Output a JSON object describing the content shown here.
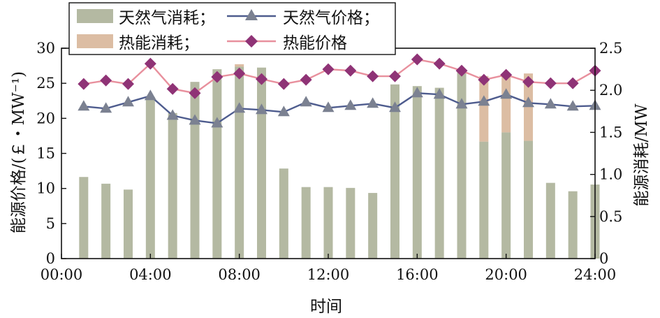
{
  "chart_data": {
    "type": "bar+line",
    "x_ticks": [
      "00:00",
      "04:00",
      "08:00",
      "12:00",
      "16:00",
      "20:00",
      "24:00"
    ],
    "x_range_hours": [
      0,
      24
    ],
    "xlabel": "时间",
    "ylabel_left": "能源价格/(￡・MW⁻¹)",
    "ylabel_right": "能源消耗/MW",
    "ylim_left": [
      0,
      30
    ],
    "ylim_right": [
      0,
      2.5
    ],
    "yticks_left": [
      0,
      5,
      10,
      15,
      20,
      25,
      30
    ],
    "yticks_right": [
      "0",
      "0.5",
      "1.0",
      "1.5",
      "2.0",
      "2.5"
    ],
    "hours": [
      1,
      2,
      3,
      4,
      5,
      6,
      7,
      8,
      9,
      10,
      11,
      12,
      13,
      14,
      15,
      16,
      17,
      18,
      19,
      20,
      21,
      22,
      23,
      24
    ],
    "series": [
      {
        "name": "天然气消耗",
        "kind": "bar",
        "axis": "right",
        "color": "#b4b9a2",
        "values": [
          0.97,
          0.89,
          0.82,
          1.92,
          1.73,
          2.1,
          2.25,
          2.28,
          2.27,
          1.07,
          0.85,
          0.85,
          0.84,
          0.78,
          2.07,
          2.05,
          2.03,
          2.22,
          1.39,
          1.5,
          1.4,
          0.9,
          0.8,
          0.88
        ]
      },
      {
        "name": "热能消耗",
        "kind": "bar",
        "axis": "right",
        "stacked_on": "天然气消耗",
        "color": "#dcbda3",
        "values": [
          0,
          0,
          0,
          0,
          0,
          0,
          0,
          0.03,
          0,
          0,
          0,
          0,
          0,
          0,
          0,
          0,
          0,
          0,
          0.78,
          0.67,
          0.8,
          0,
          0,
          0
        ]
      },
      {
        "name": "天然气价格",
        "kind": "line",
        "axis": "left",
        "marker": "triangle",
        "color": "#4e5c8e",
        "marker_color": "#7b8191",
        "values": [
          21.7,
          21.4,
          22.3,
          23.2,
          20.4,
          19.7,
          19.3,
          21.4,
          21.2,
          20.9,
          22.3,
          21.5,
          21.8,
          22.1,
          21.5,
          23.6,
          23.4,
          22.0,
          22.4,
          23.4,
          22.2,
          22.0,
          21.7,
          21.8
        ]
      },
      {
        "name": "热能价格",
        "kind": "line",
        "axis": "left",
        "marker": "diamond",
        "color": "#e8909d",
        "marker_color": "#8f3376",
        "values": [
          24.9,
          25.4,
          24.9,
          27.8,
          24.2,
          23.6,
          25.9,
          26.4,
          25.6,
          24.9,
          25.5,
          27.0,
          26.8,
          26.0,
          26.0,
          28.4,
          27.8,
          26.8,
          25.5,
          26.2,
          25.2,
          25.0,
          25.0,
          26.8
        ]
      }
    ],
    "legend_placement": "top-left",
    "legend_separator": "；",
    "grid": false
  }
}
